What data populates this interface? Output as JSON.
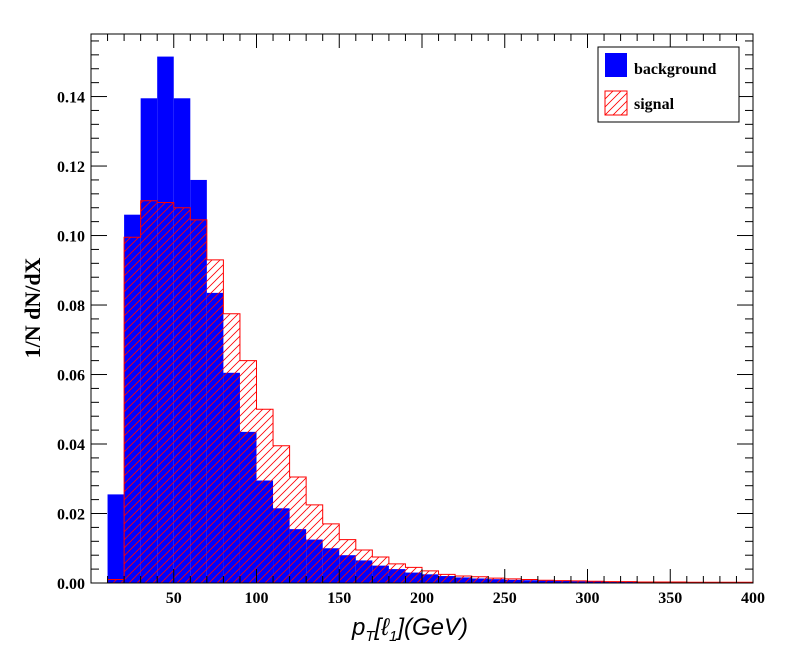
{
  "chart_data": {
    "type": "bar",
    "ylabel": "1/N dN/dX",
    "xlabel": "p_T[ℓ_1](GeV)",
    "xlabel_parts": {
      "p": "p",
      "sub_T": "T",
      "bracket_open": "[",
      "ell": "ℓ",
      "sub_1": "1",
      "unit": "](GeV)"
    },
    "xlim": [
      0,
      400
    ],
    "ylim": [
      0,
      0.158
    ],
    "x_ticks": [
      50,
      100,
      150,
      200,
      250,
      300,
      350,
      400
    ],
    "y_ticks": [
      0.0,
      0.02,
      0.04,
      0.06,
      0.08,
      0.1,
      0.12,
      0.14
    ],
    "y_tick_labels": [
      "0.00",
      "0.02",
      "0.04",
      "0.06",
      "0.08",
      "0.10",
      "0.12",
      "0.14"
    ],
    "bin_edges": [
      10,
      20,
      30,
      40,
      50,
      60,
      70,
      80,
      90,
      100,
      110,
      120,
      130,
      140,
      150,
      160,
      170,
      180,
      190,
      200,
      210,
      220,
      230,
      240,
      250,
      260,
      270,
      280,
      290,
      300,
      310,
      320,
      330,
      340,
      350,
      360,
      370,
      380,
      390,
      400
    ],
    "series": [
      {
        "name": "background",
        "color": "#0000ff",
        "style": "filled",
        "values": [
          0.0255,
          0.106,
          0.1395,
          0.1515,
          0.1395,
          0.116,
          0.0835,
          0.0605,
          0.0435,
          0.0295,
          0.0215,
          0.0155,
          0.0125,
          0.01,
          0.008,
          0.0065,
          0.005,
          0.004,
          0.003,
          0.0025,
          0.002,
          0.0016,
          0.0013,
          0.0011,
          0.0009,
          0.0008,
          0.0007,
          0.0006,
          0.0005,
          0.0005,
          0.0004,
          0.0004,
          0.0003,
          0.0003,
          0.0003,
          0.0002,
          0.0002,
          0.0002,
          0.0002
        ]
      },
      {
        "name": "signal",
        "color": "#ff0000",
        "style": "hatched",
        "values": [
          0.001,
          0.0995,
          0.11,
          0.1095,
          0.108,
          0.1045,
          0.093,
          0.0775,
          0.064,
          0.05,
          0.0395,
          0.0305,
          0.0225,
          0.017,
          0.0125,
          0.0095,
          0.0075,
          0.0055,
          0.0045,
          0.0035,
          0.0025,
          0.002,
          0.0018,
          0.0014,
          0.0012,
          0.001,
          0.0008,
          0.0007,
          0.0006,
          0.0005,
          0.0004,
          0.0004,
          0.0003,
          0.0003,
          0.0003,
          0.0002,
          0.0002,
          0.0002,
          0.0002
        ]
      }
    ],
    "legend": {
      "position": "top-right",
      "entries": [
        {
          "label": "background",
          "color": "#0000ff",
          "style": "filled"
        },
        {
          "label": "signal",
          "color": "#ff0000",
          "style": "hatched"
        }
      ]
    },
    "grid": false
  }
}
